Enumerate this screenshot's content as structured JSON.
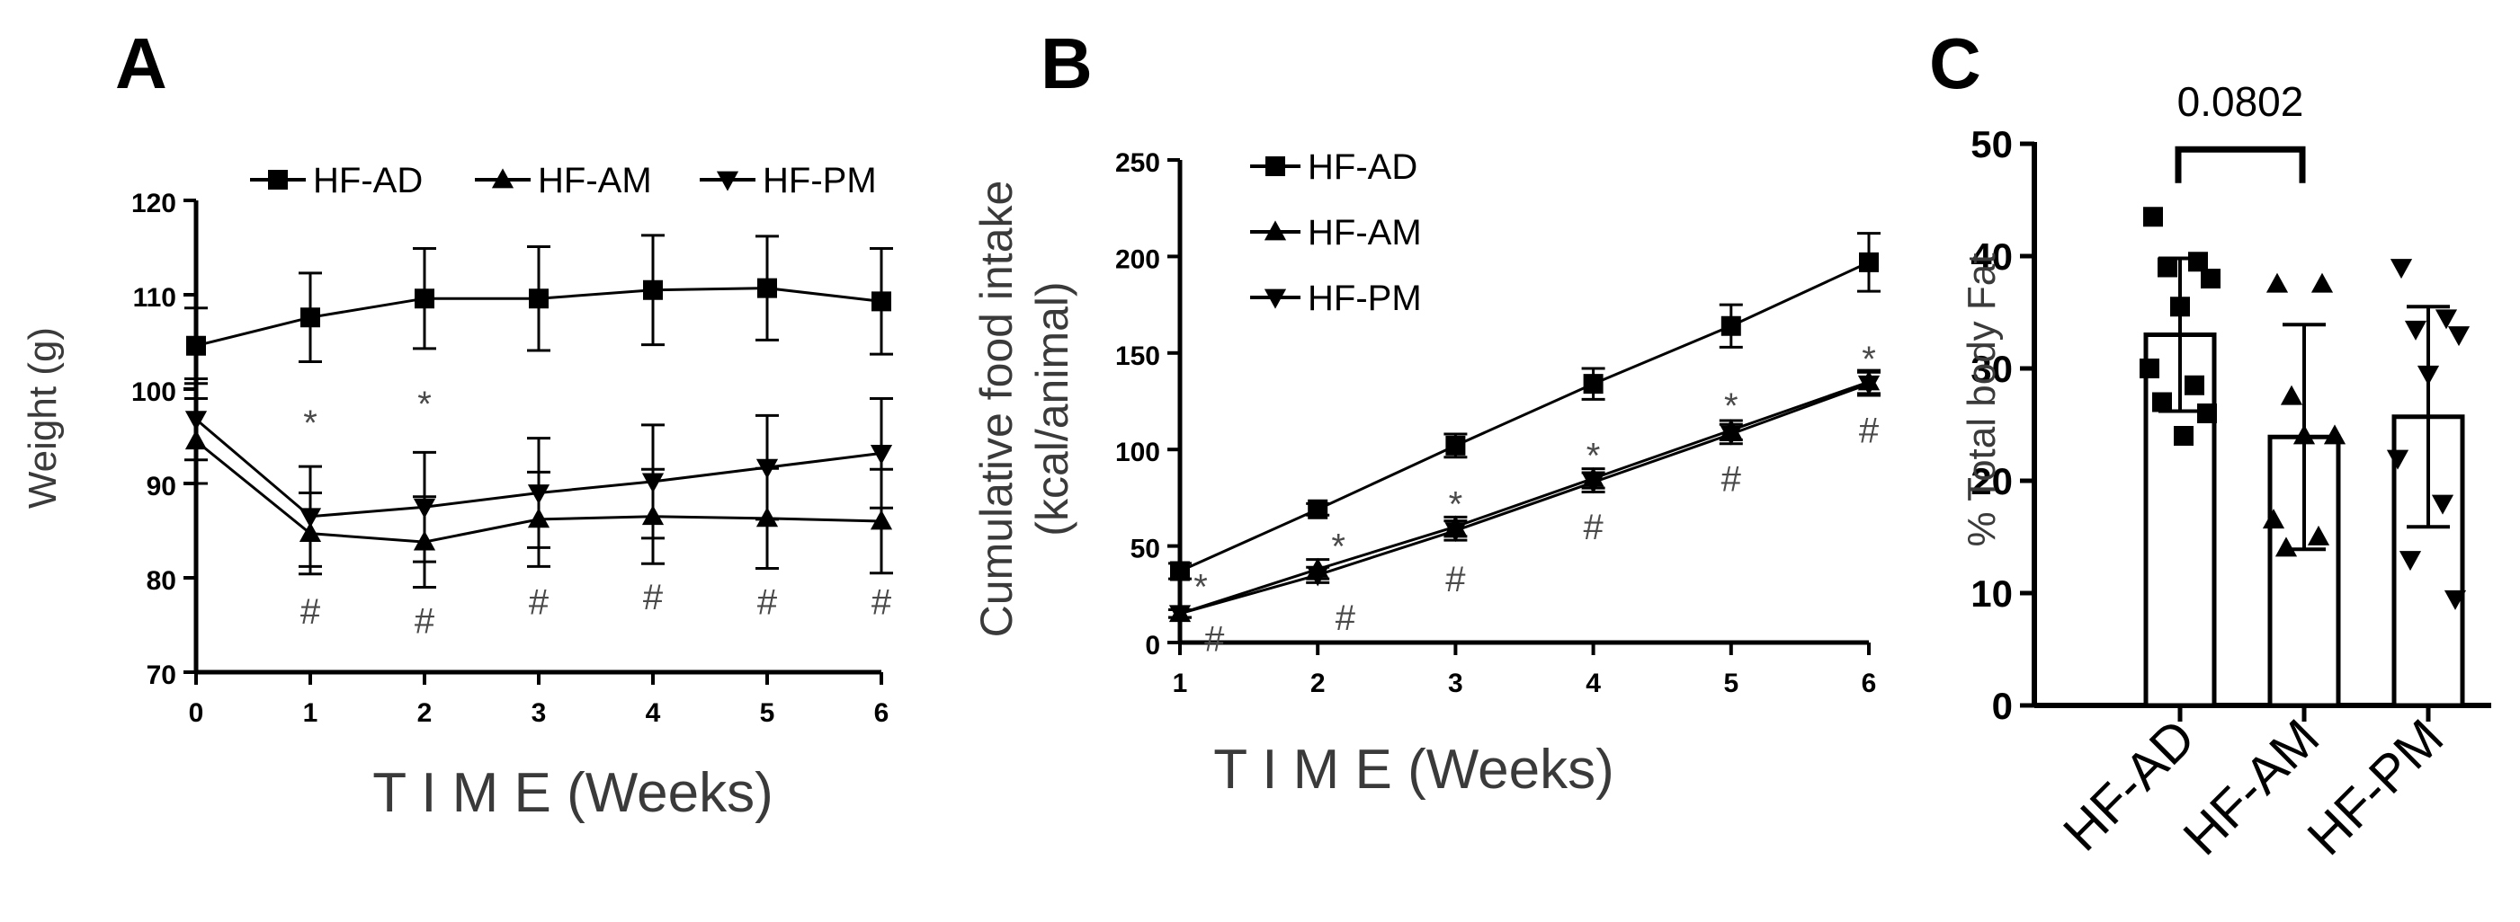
{
  "chart_data": [
    {
      "panel": "A",
      "type": "line",
      "title": "",
      "xlabel": "T I M E (Weeks)",
      "ylabel": "Weight (g)",
      "xlim": [
        0,
        6
      ],
      "ylim": [
        70,
        120
      ],
      "x_ticks": [
        0,
        1,
        2,
        3,
        4,
        5,
        6
      ],
      "y_ticks": [
        70,
        80,
        90,
        100,
        110,
        120
      ],
      "legend": {
        "placement": "top",
        "entries": [
          "HF-AD",
          "HF-AM",
          "HF-PM"
        ]
      },
      "x": [
        0,
        1,
        2,
        3,
        4,
        5,
        6
      ],
      "series": [
        {
          "name": "HF-AD",
          "marker": "square",
          "values": [
            104.6,
            107.6,
            109.6,
            109.6,
            110.5,
            110.7,
            109.3
          ],
          "errors": [
            4.0,
            4.7,
            5.3,
            5.5,
            5.8,
            5.5,
            5.6
          ]
        },
        {
          "name": "HF-AM",
          "marker": "triangle-up",
          "values": [
            94.5,
            84.7,
            83.8,
            86.2,
            86.5,
            86.3,
            86.0
          ],
          "errors": [
            4.5,
            4.3,
            4.8,
            5.0,
            5.0,
            5.3,
            5.5
          ]
        },
        {
          "name": "HF-PM",
          "marker": "triangle-down",
          "values": [
            96.8,
            86.5,
            87.5,
            89.0,
            90.2,
            91.7,
            93.2
          ],
          "errors": [
            4.3,
            5.3,
            5.8,
            5.8,
            6.0,
            5.5,
            5.8
          ]
        }
      ],
      "annotations": [
        {
          "text": "*",
          "x": 1,
          "y": 96.5
        },
        {
          "text": "*",
          "x": 2,
          "y": 98.5
        },
        {
          "text": "#",
          "x": 1,
          "y": 76.5
        },
        {
          "text": "#",
          "x": 2,
          "y": 75.5
        },
        {
          "text": "#",
          "x": 3,
          "y": 77.5
        },
        {
          "text": "#",
          "x": 4,
          "y": 78.0
        },
        {
          "text": "#",
          "x": 5,
          "y": 77.5
        },
        {
          "text": "#",
          "x": 6,
          "y": 77.5
        }
      ]
    },
    {
      "panel": "B",
      "type": "line",
      "title": "",
      "xlabel": "T I M E (Weeks)",
      "ylabel": "Cumulative food intake\n(kcal/animal)",
      "ylabel_lines": [
        "Cumulative food intake",
        "(kcal/animal)"
      ],
      "xlim": [
        1,
        6
      ],
      "ylim": [
        0,
        250
      ],
      "x_ticks": [
        1,
        2,
        3,
        4,
        5,
        6
      ],
      "y_ticks": [
        0,
        50,
        100,
        150,
        200,
        250
      ],
      "legend": {
        "placement": "top-left",
        "entries": [
          "HF-AD",
          "HF-AM",
          "HF-PM"
        ]
      },
      "x": [
        1,
        2,
        3,
        4,
        5,
        6
      ],
      "series": [
        {
          "name": "HF-AD",
          "marker": "square",
          "values": [
            37,
            69,
            102,
            134,
            164,
            197
          ],
          "errors": [
            4,
            3,
            6,
            8,
            11,
            15
          ]
        },
        {
          "name": "HF-AM",
          "marker": "triangle-up",
          "values": [
            15,
            38,
            60,
            85,
            110,
            135
          ],
          "errors": [
            2,
            5,
            5,
            5,
            5,
            6
          ]
        },
        {
          "name": "HF-PM",
          "marker": "triangle-down",
          "values": [
            15,
            35,
            58,
            83,
            108,
            134
          ],
          "errors": [
            2,
            4,
            5,
            5,
            5,
            6
          ]
        }
      ],
      "annotations": [
        {
          "text": "*",
          "x": 1.15,
          "y": 29
        },
        {
          "text": "*",
          "x": 2.15,
          "y": 50
        },
        {
          "text": "*",
          "x": 3.0,
          "y": 72
        },
        {
          "text": "*",
          "x": 4.0,
          "y": 97
        },
        {
          "text": "*",
          "x": 5.0,
          "y": 123
        },
        {
          "text": "*",
          "x": 6.0,
          "y": 147
        },
        {
          "text": "#",
          "x": 1.25,
          "y": 2
        },
        {
          "text": "#",
          "x": 2.2,
          "y": 13
        },
        {
          "text": "#",
          "x": 3.0,
          "y": 33
        },
        {
          "text": "#",
          "x": 4.0,
          "y": 60
        },
        {
          "text": "#",
          "x": 5.0,
          "y": 85
        },
        {
          "text": "#",
          "x": 6.0,
          "y": 110
        }
      ]
    },
    {
      "panel": "C",
      "type": "bar",
      "title": "",
      "xlabel": "",
      "ylabel": "% Total body Fat",
      "ylim": [
        0,
        50
      ],
      "y_ticks": [
        0,
        10,
        20,
        30,
        40,
        50
      ],
      "categories": [
        "HF-AD",
        "HF-AM",
        "HF-PM"
      ],
      "values": [
        33.0,
        23.9,
        25.7
      ],
      "errors": [
        6.8,
        10.0,
        9.8
      ],
      "points": [
        {
          "category": "HF-AD",
          "marker": "square",
          "values": [
            43.5,
            39.5,
            39.0,
            38.0,
            35.5,
            30.0,
            28.5,
            27.0,
            26.0,
            24.0
          ]
        },
        {
          "category": "HF-AM",
          "marker": "triangle-up",
          "values": [
            37.5,
            37.5,
            27.5,
            24.0,
            24.0,
            16.5,
            15.0,
            14.0
          ]
        },
        {
          "category": "HF-PM",
          "marker": "triangle-down",
          "values": [
            39.0,
            34.5,
            33.5,
            33.0,
            29.5,
            22.0,
            18.0,
            13.0,
            9.5
          ]
        }
      ],
      "comparison": {
        "from": "HF-AD",
        "to": "HF-AM",
        "label": "0.0802"
      }
    }
  ]
}
